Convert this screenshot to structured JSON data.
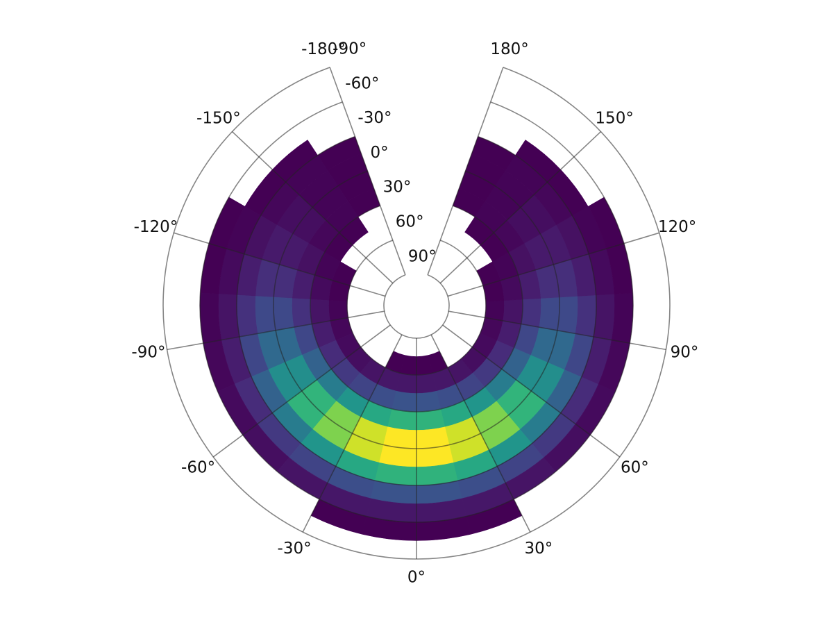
{
  "chart_data": {
    "type": "polar-heatmap",
    "theta_bins": [
      -180,
      -165,
      -150,
      -135,
      -120,
      -105,
      -90,
      -75,
      -60,
      -45,
      -30,
      -15,
      0,
      15,
      30,
      45,
      60,
      75,
      90,
      105,
      120,
      135,
      150,
      165,
      180
    ],
    "r_bins": [
      90,
      75,
      60,
      45,
      30,
      15,
      0,
      -15,
      -30,
      -45,
      -60,
      -75,
      -90
    ],
    "z": [
      [
        null,
        null,
        null,
        null,
        null,
        null,
        null,
        null,
        null,
        null,
        null,
        null,
        null,
        null,
        null,
        null,
        null,
        null,
        null,
        null,
        null,
        null,
        null,
        null
      ],
      [
        null,
        null,
        null,
        null,
        null,
        null,
        null,
        null,
        null,
        null,
        1,
        1,
        1,
        1,
        null,
        null,
        null,
        null,
        null,
        null,
        null,
        null,
        null,
        null
      ],
      [
        null,
        null,
        null,
        1,
        1,
        2,
        3,
        4,
        5,
        7,
        8,
        8,
        8,
        8,
        7,
        5,
        4,
        3,
        2,
        1,
        1,
        null,
        null,
        null
      ],
      [
        null,
        1,
        1,
        2,
        4,
        7,
        10,
        15,
        20,
        24,
        28,
        30,
        30,
        28,
        24,
        20,
        15,
        10,
        7,
        4,
        2,
        1,
        1,
        null
      ],
      [
        1,
        2,
        3,
        6,
        10,
        17,
        25,
        36,
        48,
        59,
        68,
        73,
        73,
        68,
        59,
        48,
        36,
        25,
        17,
        10,
        6,
        3,
        2,
        1
      ],
      [
        1,
        2,
        5,
        9,
        16,
        26,
        39,
        56,
        74,
        91,
        105,
        113,
        113,
        105,
        91,
        74,
        56,
        39,
        26,
        16,
        9,
        5,
        2,
        1
      ],
      [
        1,
        2,
        5,
        9,
        16,
        26,
        39,
        56,
        74,
        91,
        105,
        113,
        113,
        105,
        91,
        74,
        56,
        39,
        26,
        16,
        9,
        5,
        2,
        1
      ],
      [
        1,
        2,
        3,
        6,
        10,
        17,
        25,
        36,
        48,
        59,
        68,
        73,
        73,
        68,
        59,
        48,
        36,
        25,
        17,
        10,
        6,
        3,
        2,
        1
      ],
      [
        null,
        1,
        1,
        2,
        4,
        7,
        10,
        15,
        20,
        24,
        28,
        30,
        30,
        28,
        24,
        20,
        15,
        10,
        7,
        4,
        2,
        1,
        1,
        null
      ],
      [
        null,
        null,
        null,
        1,
        1,
        2,
        3,
        4,
        5,
        7,
        8,
        8,
        8,
        8,
        7,
        5,
        4,
        3,
        2,
        1,
        1,
        null,
        null,
        null
      ],
      [
        null,
        null,
        null,
        null,
        null,
        null,
        null,
        null,
        null,
        null,
        1,
        1,
        1,
        1,
        null,
        null,
        null,
        null,
        null,
        null,
        null,
        null,
        null,
        null
      ],
      [
        null,
        null,
        null,
        null,
        null,
        null,
        null,
        null,
        null,
        null,
        null,
        null,
        null,
        null,
        null,
        null,
        null,
        null,
        null,
        null,
        null,
        null,
        null,
        null
      ]
    ],
    "colorrange": [
      1,
      113
    ],
    "colormap": [
      "#440154",
      "#482878",
      "#3e4989",
      "#31688e",
      "#26828e",
      "#1f9e89",
      "#35b779",
      "#6ece58",
      "#b5de2b",
      "#fde725"
    ],
    "xlim": [
      -180,
      180
    ],
    "xticks": [
      {
        "value": -180,
        "label": "-180°"
      },
      {
        "value": -150,
        "label": "-150°"
      },
      {
        "value": -120,
        "label": "-120°"
      },
      {
        "value": -90,
        "label": "-90°"
      },
      {
        "value": -60,
        "label": "-60°"
      },
      {
        "value": -30,
        "label": "-30°"
      },
      {
        "value": 0,
        "label": "0°"
      },
      {
        "value": 30,
        "label": "30°"
      },
      {
        "value": 60,
        "label": "60°"
      },
      {
        "value": 90,
        "label": "90°"
      },
      {
        "value": 120,
        "label": "120°"
      },
      {
        "value": 150,
        "label": "150°"
      },
      {
        "value": 180,
        "label": "180°"
      }
    ],
    "ylim": [
      90,
      -90
    ],
    "yticks": [
      {
        "value": 90,
        "label": "90°"
      },
      {
        "value": 60,
        "label": "60°"
      },
      {
        "value": 30,
        "label": "30°"
      },
      {
        "value": 0,
        "label": "0°"
      },
      {
        "value": -30,
        "label": "-30°"
      },
      {
        "value": -60,
        "label": "-60°"
      },
      {
        "value": -90,
        "label": "-90°"
      }
    ],
    "grid": true
  }
}
